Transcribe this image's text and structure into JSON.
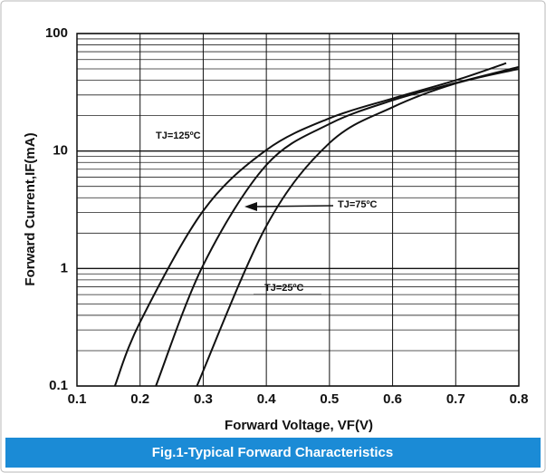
{
  "chart_data": {
    "type": "line",
    "title": "Fig.1-Typical Forward Characteristics",
    "xlabel": "Forward  Voltage, VF(V)",
    "ylabel": "Forward Current,IF(mA)",
    "xlim": [
      0.1,
      0.8
    ],
    "xticks": [
      0.1,
      0.2,
      0.3,
      0.4,
      0.5,
      0.6,
      0.7,
      0.8
    ],
    "ylim": [
      0.1,
      100
    ],
    "yticks": [
      0.1,
      1,
      10,
      100
    ],
    "log_y": true,
    "grid": true,
    "series": [
      {
        "name": "TJ=125ºC",
        "color": "#111111",
        "x": [
          0.16,
          0.2,
          0.3,
          0.4,
          0.5,
          0.6,
          0.7,
          0.78
        ],
        "values": [
          0.1,
          0.35,
          3.1,
          10.2,
          19,
          28,
          40,
          56
        ]
      },
      {
        "name": "TJ=75ºC",
        "color": "#111111",
        "x": [
          0.225,
          0.3,
          0.4,
          0.5,
          0.6,
          0.7,
          0.8
        ],
        "values": [
          0.1,
          1.07,
          7.6,
          17,
          27,
          38,
          52
        ]
      },
      {
        "name": "TJ=25ºC",
        "color": "#111111",
        "x": [
          0.29,
          0.4,
          0.5,
          0.6,
          0.7,
          0.8
        ],
        "values": [
          0.1,
          2.3,
          11.7,
          23.6,
          37.6,
          50
        ]
      }
    ]
  }
}
